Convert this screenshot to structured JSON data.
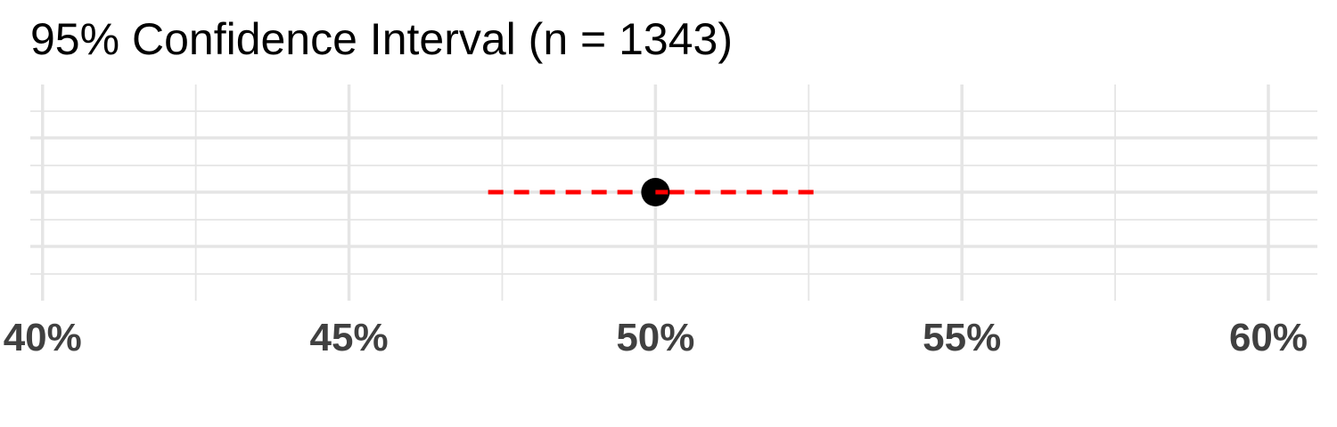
{
  "title": "95% Confidence Interval (n = 1343)",
  "chart_data": {
    "type": "scatter",
    "title": "95% Confidence Interval (n = 1343)",
    "xlabel": "",
    "ylabel": "",
    "xlim": [
      0.398,
      0.608
    ],
    "x_ticks": [
      0.4,
      0.45,
      0.5,
      0.55,
      0.6
    ],
    "x_tick_labels": [
      "40%",
      "45%",
      "50%",
      "55%",
      "60%"
    ],
    "x_minor_ticks": [
      0.425,
      0.475,
      0.525,
      0.575
    ],
    "grid": true,
    "estimate": 0.5,
    "ci_lower": 0.4727,
    "ci_upper": 0.5273,
    "n": 1343,
    "colors": {
      "point": "#000000",
      "interval": "#ff0000",
      "grid": "#e5e5e5",
      "tick_text": "#404040"
    },
    "interval_style": "dashed"
  }
}
